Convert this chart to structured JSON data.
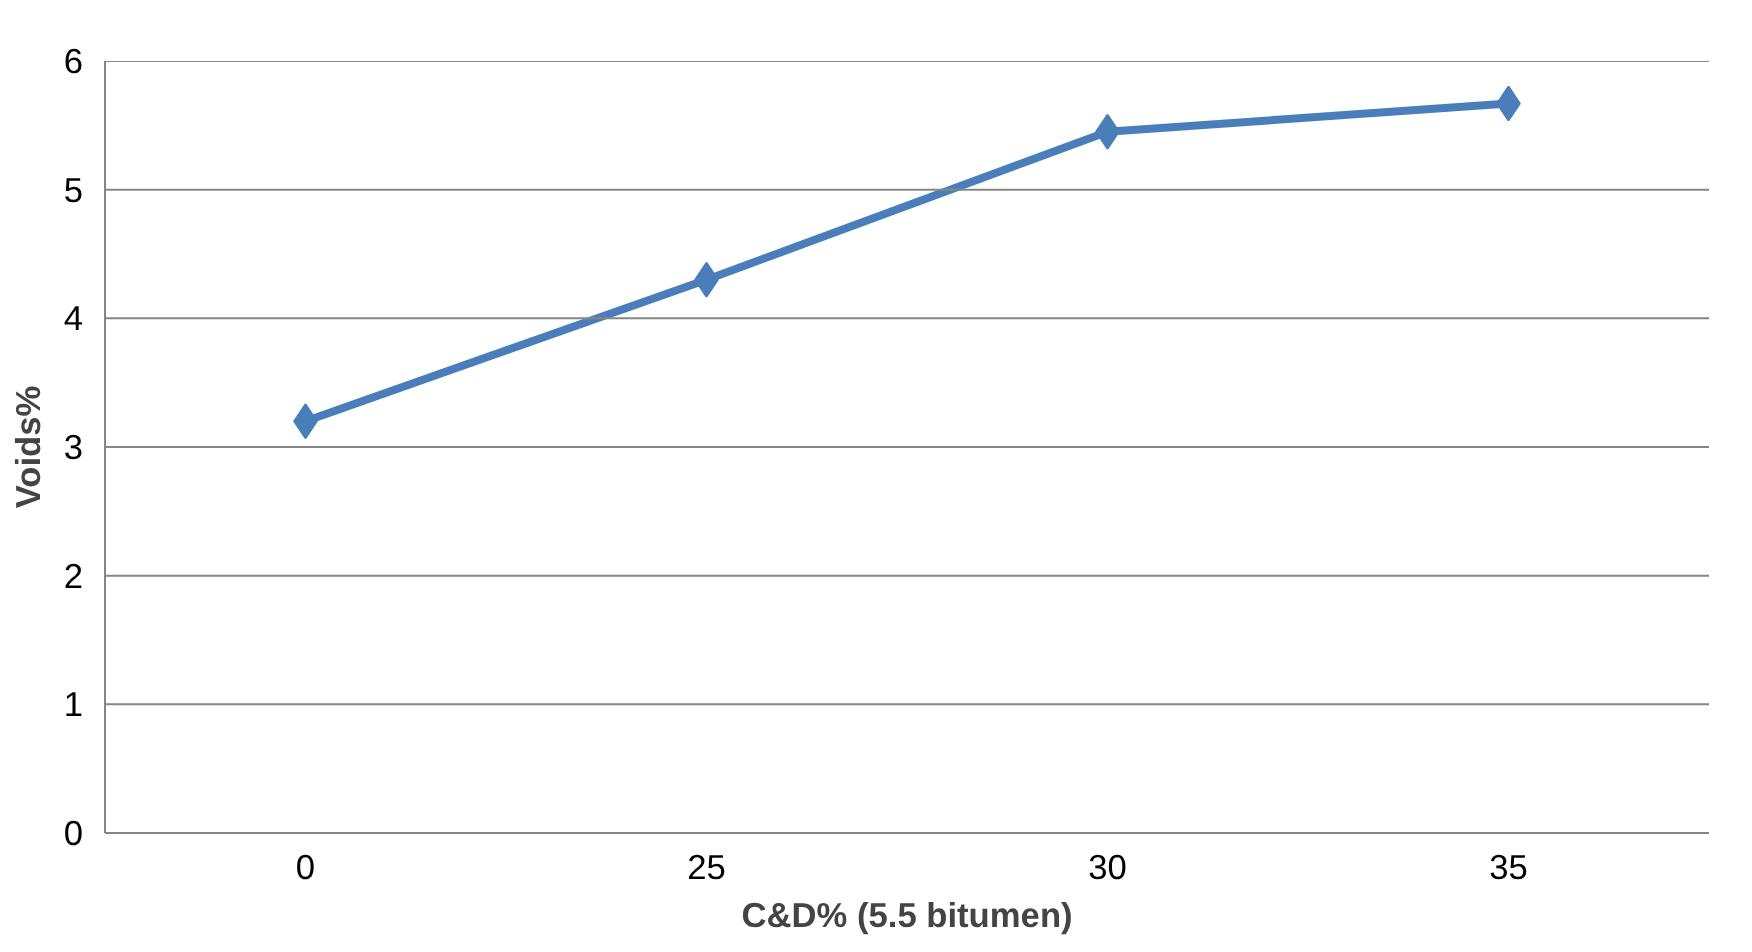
{
  "chart_data": {
    "type": "line",
    "xlabel": "C&D% (5.5 bitumen)",
    "ylabel": "Voids%",
    "categories": [
      "0",
      "25",
      "30",
      "35"
    ],
    "series": [
      {
        "color": "#4a7ebb",
        "values": [
          3.2,
          4.3,
          5.45,
          5.67
        ]
      }
    ],
    "ylim": [
      0,
      6
    ],
    "yticks": [
      0,
      1,
      2,
      3,
      4,
      5,
      6
    ],
    "grid": "y",
    "marker": "diamond",
    "line_style": "solid"
  }
}
